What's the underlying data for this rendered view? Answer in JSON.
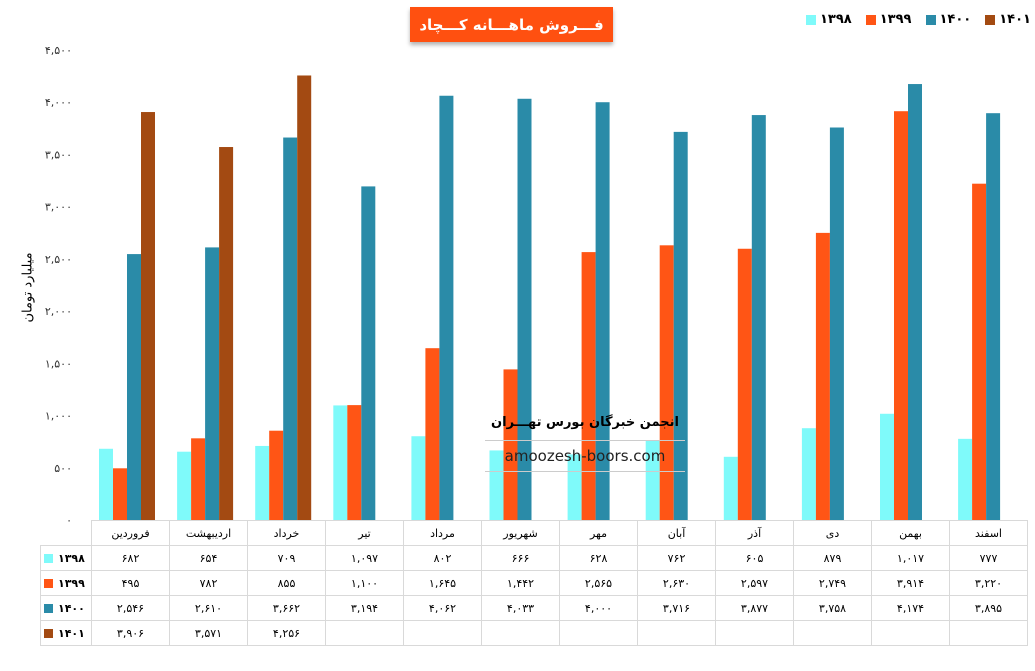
{
  "chart_data": {
    "type": "bar",
    "title": "فـــروش ماهـــانه کـــچاد",
    "ylabel": "میلیارد تومان",
    "ylim": [
      0,
      4500
    ],
    "yticks": [
      "۰",
      "۵۰۰",
      "۱,۰۰۰",
      "۱,۵۰۰",
      "۲,۰۰۰",
      "۲,۵۰۰",
      "۳,۰۰۰",
      "۳,۵۰۰",
      "۴,۰۰۰",
      "۴,۵۰۰"
    ],
    "categories": [
      "فروردین",
      "اردیبهشت",
      "خرداد",
      "تیر",
      "مرداد",
      "شهریور",
      "مهر",
      "آبان",
      "آذر",
      "دی",
      "بهمن",
      "اسفند"
    ],
    "legend_position": "top-right",
    "series": [
      {
        "name": "۱۳۹۸",
        "color": "#7FFAFA",
        "values": [
          682,
          654,
          709,
          1097,
          802,
          666,
          628,
          762,
          605,
          879,
          1017,
          777
        ],
        "labels": [
          "۶۸۲",
          "۶۵۴",
          "۷۰۹",
          "۱,۰۹۷",
          "۸۰۲",
          "۶۶۶",
          "۶۲۸",
          "۷۶۲",
          "۶۰۵",
          "۸۷۹",
          "۱,۰۱۷",
          "۷۷۷"
        ]
      },
      {
        "name": "۱۳۹۹",
        "color": "#FF5515",
        "values": [
          495,
          782,
          855,
          1100,
          1645,
          1442,
          2565,
          2630,
          2597,
          2749,
          3914,
          3220
        ],
        "labels": [
          "۴۹۵",
          "۷۸۲",
          "۸۵۵",
          "۱,۱۰۰",
          "۱,۶۴۵",
          "۱,۴۴۲",
          "۲,۵۶۵",
          "۲,۶۳۰",
          "۲,۵۹۷",
          "۲,۷۴۹",
          "۳,۹۱۴",
          "۳,۲۲۰"
        ]
      },
      {
        "name": "۱۴۰۰",
        "color": "#2A8BA8",
        "values": [
          2546,
          2610,
          3662,
          3194,
          4062,
          4033,
          4000,
          3716,
          3877,
          3758,
          4174,
          3895
        ],
        "labels": [
          "۲,۵۴۶",
          "۲,۶۱۰",
          "۳,۶۶۲",
          "۳,۱۹۴",
          "۴,۰۶۲",
          "۴,۰۳۳",
          "۴,۰۰۰",
          "۳,۷۱۶",
          "۳,۸۷۷",
          "۳,۷۵۸",
          "۴,۱۷۴",
          "۳,۸۹۵"
        ]
      },
      {
        "name": "۱۴۰۱",
        "color": "#A34A12",
        "values": [
          3906,
          3571,
          4256,
          null,
          null,
          null,
          null,
          null,
          null,
          null,
          null,
          null
        ],
        "labels": [
          "۳,۹۰۶",
          "۳,۵۷۱",
          "۴,۲۵۶",
          "",
          "",
          "",
          "",
          "",
          "",
          "",
          "",
          ""
        ]
      }
    ]
  },
  "watermark": {
    "title": "انجمن خبرگان بورس تهـــران",
    "site": "amoozesh-boors.com"
  }
}
